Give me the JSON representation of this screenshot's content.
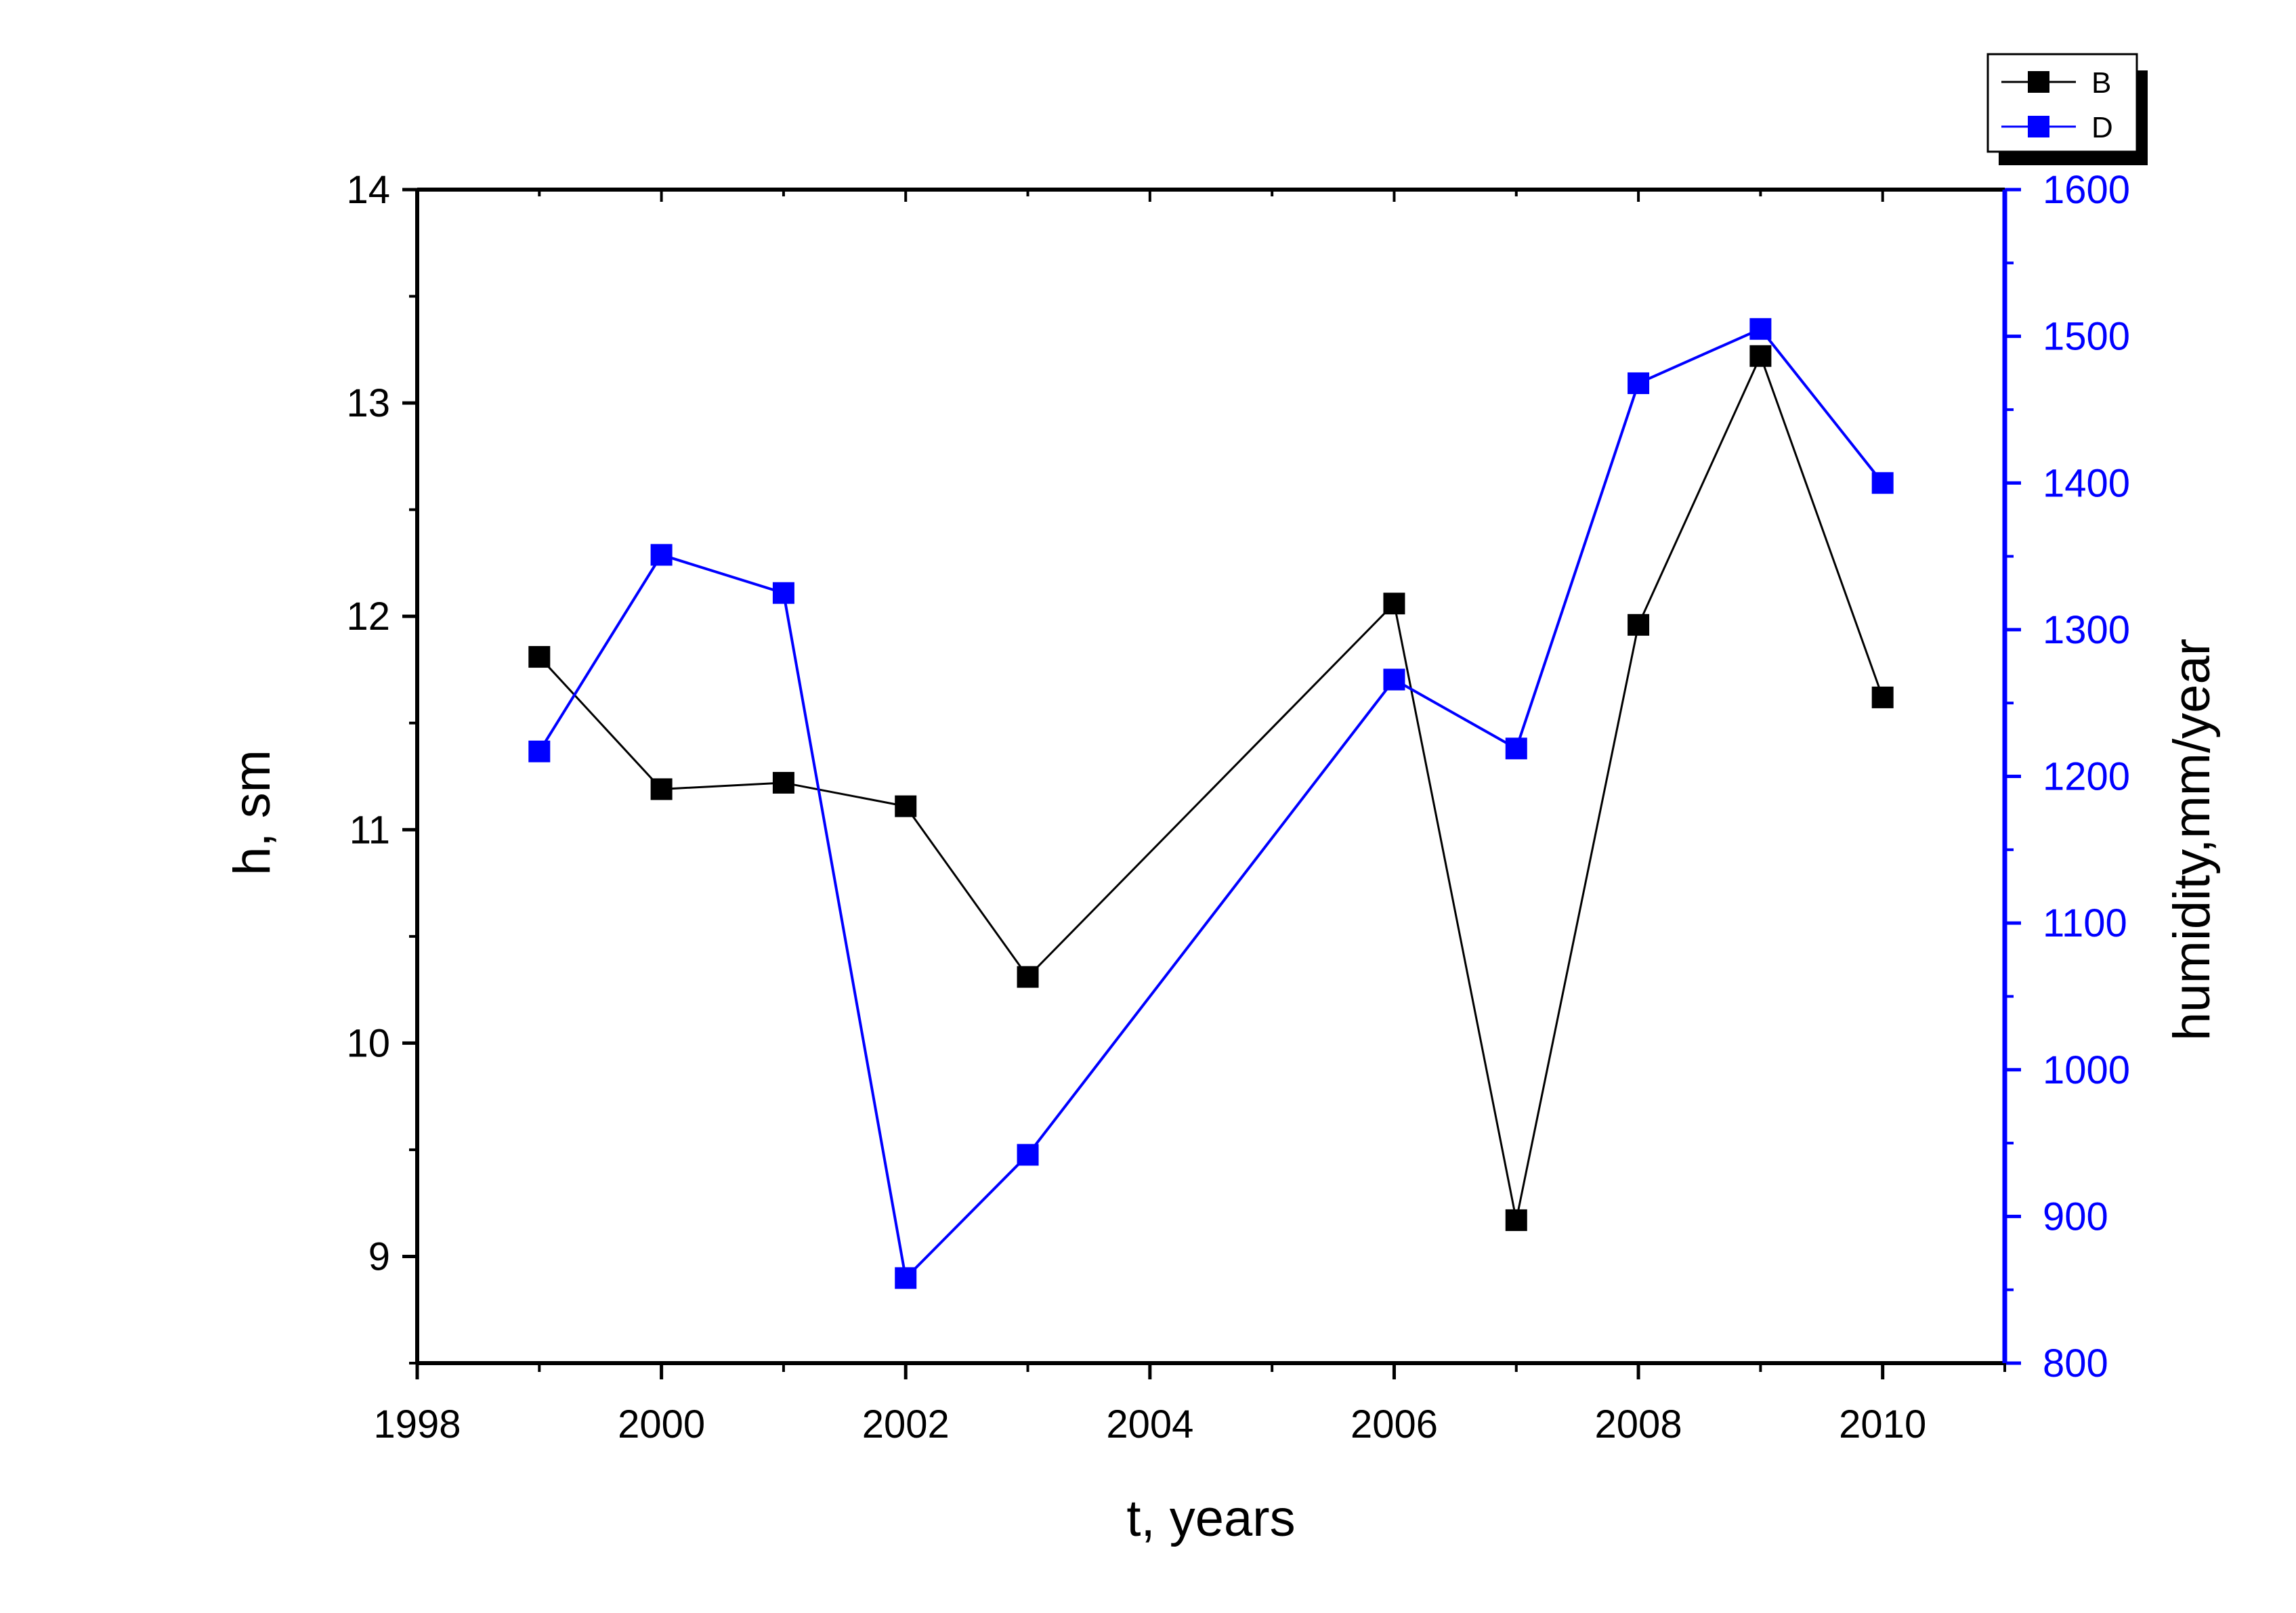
{
  "chart_data": {
    "type": "line",
    "xlabel": "t, years",
    "ylabel": "h, sm",
    "y2label": "humidity,mm/year",
    "xlim": [
      1998,
      2011
    ],
    "ylim": [
      8.5,
      14
    ],
    "y2lim": [
      800,
      1600
    ],
    "x_ticks": [
      "1998",
      "2000",
      "2002",
      "2004",
      "2006",
      "2008",
      "2010"
    ],
    "y_ticks": [
      "9",
      "10",
      "11",
      "12",
      "13",
      "14"
    ],
    "y2_ticks": [
      "800",
      "900",
      "1000",
      "1100",
      "1200",
      "1300",
      "1400",
      "1500",
      "1600"
    ],
    "grid": false,
    "legend_position": "top-right",
    "series": [
      {
        "name": "B",
        "axis": "left",
        "color": "#000000",
        "x": [
          1999,
          2000,
          2001,
          2002,
          2003,
          2006,
          2007,
          2008,
          2009,
          2010
        ],
        "y": [
          11.81,
          11.19,
          11.22,
          11.11,
          10.31,
          12.06,
          9.17,
          11.96,
          13.22,
          11.62
        ]
      },
      {
        "name": "D",
        "axis": "right",
        "color": "#0000ff",
        "x": [
          1999,
          2000,
          2001,
          2002,
          2003,
          2006,
          2007,
          2008,
          2009,
          2010
        ],
        "y": [
          1217,
          1351,
          1325,
          858,
          942,
          1266,
          1219,
          1468,
          1505,
          1400
        ]
      }
    ]
  }
}
